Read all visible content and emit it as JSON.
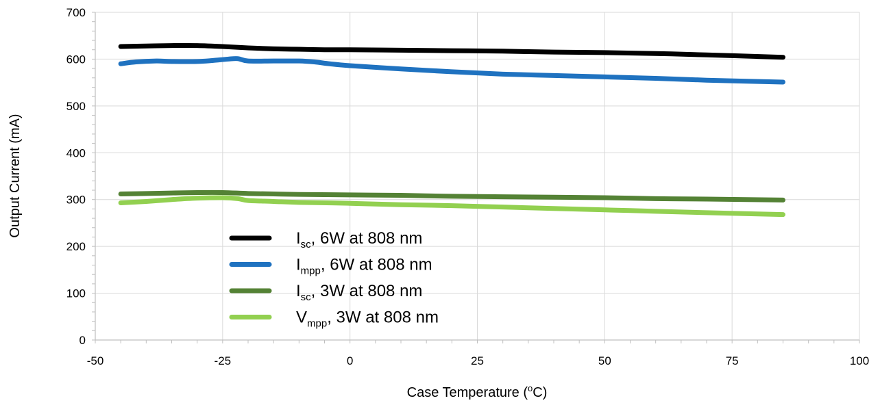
{
  "chart_data": {
    "type": "line",
    "title": "",
    "xlabel": "Case Temperature (",
    "xlabel_sup": "o",
    "xlabel_end": "C)",
    "ylabel": "Output Current (mA)",
    "xlim": [
      -50,
      100
    ],
    "ylim": [
      0,
      700
    ],
    "xticks": [
      -50,
      -25,
      0,
      25,
      50,
      75,
      100
    ],
    "yticks": [
      0,
      100,
      200,
      300,
      400,
      500,
      600,
      700
    ],
    "xtick_labels": [
      "-50",
      "-25",
      "0",
      "25",
      "50",
      "75",
      "100"
    ],
    "ytick_labels": [
      "0",
      "100",
      "200",
      "300",
      "400",
      "500",
      "600",
      "700"
    ],
    "grid": true,
    "legend_position": "lower-left",
    "series": [
      {
        "name": "Isc, 6W at 808 nm",
        "legend": {
          "main": "I",
          "sub": "sc",
          "rest": ",    6W at 808 nm"
        },
        "color": "#000000",
        "x": [
          -45,
          -40,
          -35,
          -30,
          -25,
          -20,
          -15,
          -10,
          -5,
          0,
          10,
          20,
          30,
          40,
          50,
          60,
          70,
          85
        ],
        "y": [
          627,
          628,
          629,
          629,
          627,
          624,
          622,
          621,
          620,
          620,
          619,
          618,
          617,
          615,
          614,
          612,
          609,
          604
        ]
      },
      {
        "name": "Impp, 6W at 808 nm",
        "legend": {
          "main": "I",
          "sub": "mpp",
          "rest": ", 6W at 808 nm"
        },
        "color": "#1f72c0",
        "x": [
          -45,
          -42,
          -38,
          -35,
          -30,
          -27,
          -24,
          -22,
          -20,
          -15,
          -10,
          -7,
          -4,
          0,
          10,
          20,
          30,
          40,
          50,
          60,
          70,
          85
        ],
        "y": [
          590,
          594,
          596,
          595,
          595,
          597,
          600,
          601,
          596,
          596,
          596,
          594,
          590,
          586,
          579,
          573,
          568,
          565,
          562,
          559,
          555,
          551
        ]
      },
      {
        "name": "Isc, 3W at 808 nm",
        "legend": {
          "main": "I",
          "sub": "sc",
          "rest": ",    3W at 808 nm"
        },
        "color": "#548235",
        "x": [
          -45,
          -40,
          -35,
          -30,
          -25,
          -20,
          -15,
          -10,
          0,
          10,
          20,
          30,
          40,
          50,
          60,
          70,
          85
        ],
        "y": [
          312,
          313,
          314,
          315,
          315,
          313,
          312,
          311,
          310,
          309,
          307,
          306,
          305,
          304,
          302,
          301,
          299
        ]
      },
      {
        "name": "Vmpp, 3W at 808 nm",
        "legend": {
          "main": "V",
          "sub": "mpp",
          "rest": ", 3W at 808 nm"
        },
        "color": "#92d050",
        "x": [
          -45,
          -40,
          -35,
          -30,
          -25,
          -22,
          -20,
          -15,
          -10,
          0,
          10,
          20,
          30,
          40,
          50,
          60,
          70,
          85
        ],
        "y": [
          293,
          296,
          300,
          303,
          304,
          302,
          298,
          296,
          294,
          292,
          289,
          287,
          284,
          281,
          278,
          275,
          272,
          268
        ]
      }
    ]
  }
}
